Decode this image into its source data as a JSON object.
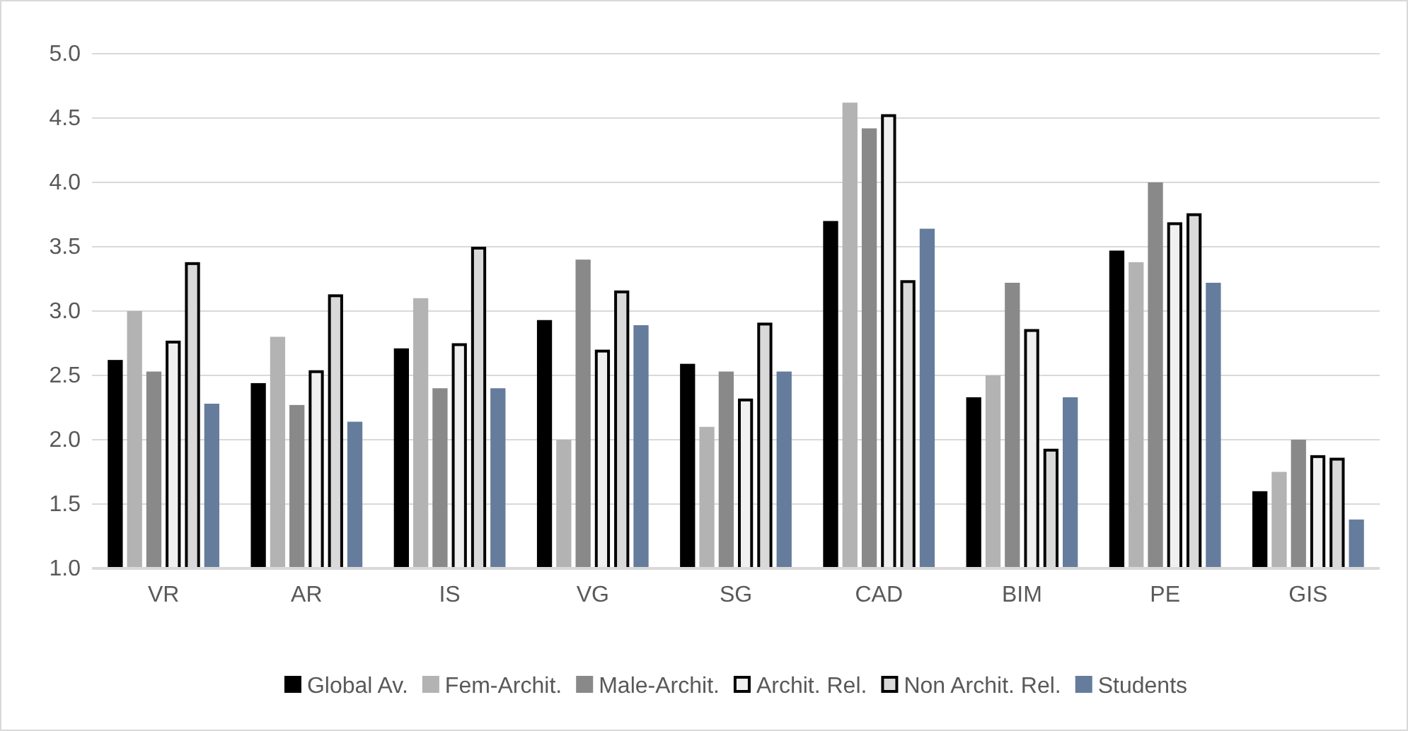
{
  "chart_data": {
    "type": "bar",
    "categories": [
      "VR",
      "AR",
      "IS",
      "VG",
      "SG",
      "CAD",
      "BIM",
      "PE",
      "GIS"
    ],
    "series": [
      {
        "name": "Global Av.",
        "color": "#000000",
        "values": [
          2.62,
          2.44,
          2.71,
          2.93,
          2.59,
          3.7,
          2.33,
          3.47,
          1.6
        ]
      },
      {
        "name": "Fem-Archit.",
        "color": "#b3b3b3",
        "values": [
          3.0,
          2.8,
          3.1,
          2.0,
          2.1,
          4.62,
          2.5,
          3.38,
          1.75
        ]
      },
      {
        "name": "Male-Archit.",
        "color": "#898989",
        "values": [
          2.53,
          2.27,
          2.4,
          3.4,
          2.53,
          4.42,
          3.22,
          4.0,
          2.0
        ]
      },
      {
        "name": "Archit. Rel.",
        "color": "#f0f0f0",
        "values": [
          2.77,
          2.54,
          2.75,
          2.7,
          2.32,
          4.53,
          2.86,
          3.69,
          1.88
        ]
      },
      {
        "name": "Non Archit. Rel.",
        "color": "#d9d9d9",
        "values": [
          3.38,
          3.13,
          3.5,
          3.16,
          2.91,
          3.24,
          1.93,
          3.76,
          1.86
        ]
      },
      {
        "name": "Students",
        "color": "#657c9c",
        "values": [
          2.28,
          2.14,
          2.4,
          2.89,
          2.53,
          3.64,
          2.33,
          3.22,
          1.38
        ]
      }
    ],
    "ylim": [
      1,
      5
    ],
    "yticks": [
      {
        "value": 1,
        "label": "1.0"
      },
      {
        "value": 1.5,
        "label": "1.5"
      },
      {
        "value": 2,
        "label": "2.0"
      },
      {
        "value": 2.5,
        "label": "2.5"
      },
      {
        "value": 3,
        "label": "3.0"
      },
      {
        "value": 3.5,
        "label": "3.5"
      },
      {
        "value": 4,
        "label": "4.0"
      },
      {
        "value": 4.5,
        "label": "4.5"
      },
      {
        "value": 5,
        "label": "5.0"
      }
    ],
    "grid": "y",
    "legend": "bottom"
  }
}
